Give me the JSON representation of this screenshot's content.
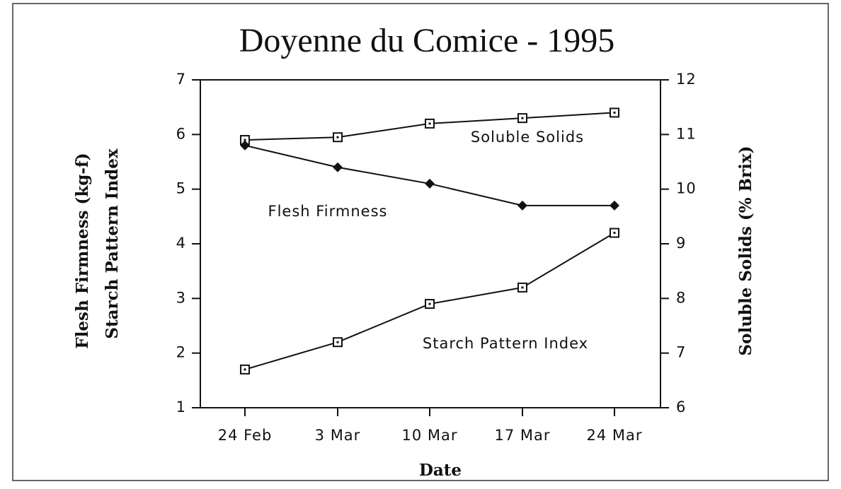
{
  "chart_data": {
    "type": "line",
    "title": "Doyenne du Comice - 1995",
    "xlabel": "Date",
    "ylabel": [
      "Flesh Firmness (kg-f)",
      "Starch Pattern Index"
    ],
    "y2label": "Soluble Solids (% Brix)",
    "categories": [
      "24 Feb",
      "3 Mar",
      "10 Mar",
      "17 Mar",
      "24 Mar"
    ],
    "ylim": [
      1,
      7
    ],
    "yticks": [
      1,
      2,
      3,
      4,
      5,
      6,
      7
    ],
    "y2lim": [
      6,
      12
    ],
    "y2ticks": [
      6,
      7,
      8,
      9,
      10,
      11,
      12
    ],
    "grid": false,
    "series": [
      {
        "name": "Soluble Solids",
        "color": "#111111",
        "marker": "square",
        "axis": "y2",
        "values": [
          10.9,
          10.95,
          11.2,
          11.3,
          11.4
        ]
      },
      {
        "name": "Flesh Firmness",
        "color": "#111111",
        "marker": "diamond",
        "values": [
          5.8,
          5.4,
          5.1,
          4.7,
          4.7
        ]
      },
      {
        "name": "Starch Pattern Index",
        "color": "#111111",
        "marker": "square",
        "values": [
          1.7,
          2.2,
          2.9,
          3.2,
          4.2
        ]
      }
    ]
  }
}
